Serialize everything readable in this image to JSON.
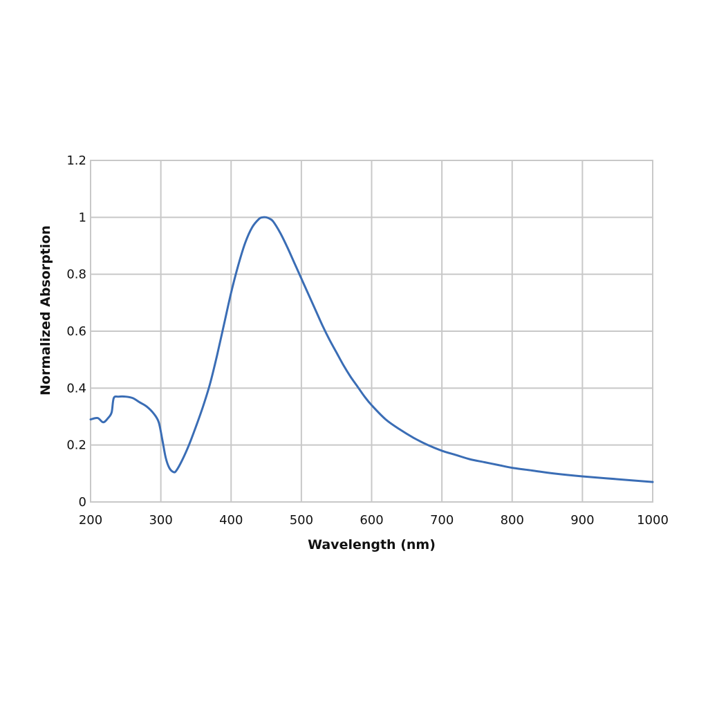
{
  "chart_data": {
    "type": "line",
    "title": "",
    "xlabel": "Wavelength (nm)",
    "ylabel": "Normalized Absorption",
    "xlim": [
      200,
      1000
    ],
    "ylim": [
      0,
      1.2
    ],
    "x_ticks": [
      200,
      300,
      400,
      500,
      600,
      700,
      800,
      900,
      1000
    ],
    "x_tick_labels": [
      "200",
      "300",
      "400",
      "500",
      "600",
      "700",
      "800",
      "900",
      "1000"
    ],
    "y_ticks": [
      0,
      0.2,
      0.4,
      0.6,
      0.8,
      1.0,
      1.2
    ],
    "y_tick_labels": [
      "0",
      "0.2",
      "0.4",
      "0.6",
      "0.8",
      "1",
      "1.2"
    ],
    "grid": true,
    "legend": "none",
    "series": [
      {
        "color": "#3a6db5",
        "x": [
          200,
          210,
          218,
          225,
          230,
          233,
          240,
          250,
          260,
          270,
          280,
          290,
          297,
          302,
          307,
          312,
          318,
          322,
          330,
          340,
          350,
          360,
          370,
          380,
          390,
          400,
          410,
          420,
          430,
          440,
          445,
          450,
          455,
          460,
          470,
          480,
          490,
          500,
          510,
          520,
          530,
          540,
          550,
          560,
          570,
          580,
          590,
          600,
          620,
          640,
          660,
          680,
          700,
          720,
          740,
          760,
          780,
          800,
          830,
          860,
          900,
          950,
          1000
        ],
        "y": [
          0.29,
          0.295,
          0.28,
          0.295,
          0.315,
          0.365,
          0.37,
          0.37,
          0.365,
          0.35,
          0.335,
          0.31,
          0.28,
          0.22,
          0.155,
          0.12,
          0.105,
          0.11,
          0.145,
          0.2,
          0.265,
          0.335,
          0.415,
          0.515,
          0.625,
          0.735,
          0.83,
          0.91,
          0.965,
          0.995,
          1.0,
          1.0,
          0.995,
          0.985,
          0.945,
          0.895,
          0.84,
          0.785,
          0.73,
          0.675,
          0.62,
          0.57,
          0.525,
          0.48,
          0.44,
          0.405,
          0.37,
          0.34,
          0.29,
          0.255,
          0.225,
          0.2,
          0.18,
          0.165,
          0.15,
          0.14,
          0.13,
          0.12,
          0.11,
          0.1,
          0.09,
          0.08,
          0.07
        ]
      }
    ]
  }
}
